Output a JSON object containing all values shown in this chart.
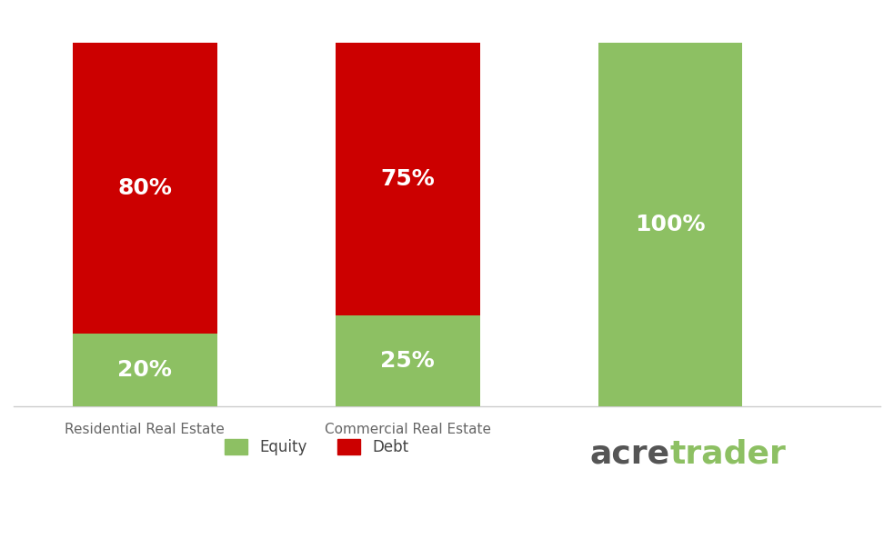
{
  "categories": [
    "Residential Real Estate",
    "Commercial Real Estate"
  ],
  "equity_values": [
    20,
    25,
    100
  ],
  "debt_values": [
    80,
    75,
    0
  ],
  "equity_labels": [
    "20%",
    "25%",
    "100%"
  ],
  "debt_labels": [
    "80%",
    "75%",
    ""
  ],
  "equity_color": "#8DC063",
  "debt_color": "#CC0000",
  "text_color": "#FFFFFF",
  "label_fontsize": 18,
  "bar_width": 0.55,
  "background_color": "#FFFFFF",
  "legend_equity": "Equity",
  "legend_debt": "Debt",
  "acretrader_color_acre": "#555555",
  "acretrader_color_trader": "#8DC063",
  "x_positions": [
    0.5,
    1.5,
    2.5
  ],
  "xlim": [
    0.0,
    3.3
  ],
  "ylim": [
    0,
    108
  ],
  "xtick_fontsize": 11,
  "xtick_color": "#666666",
  "acretrader_fontsize": 26
}
